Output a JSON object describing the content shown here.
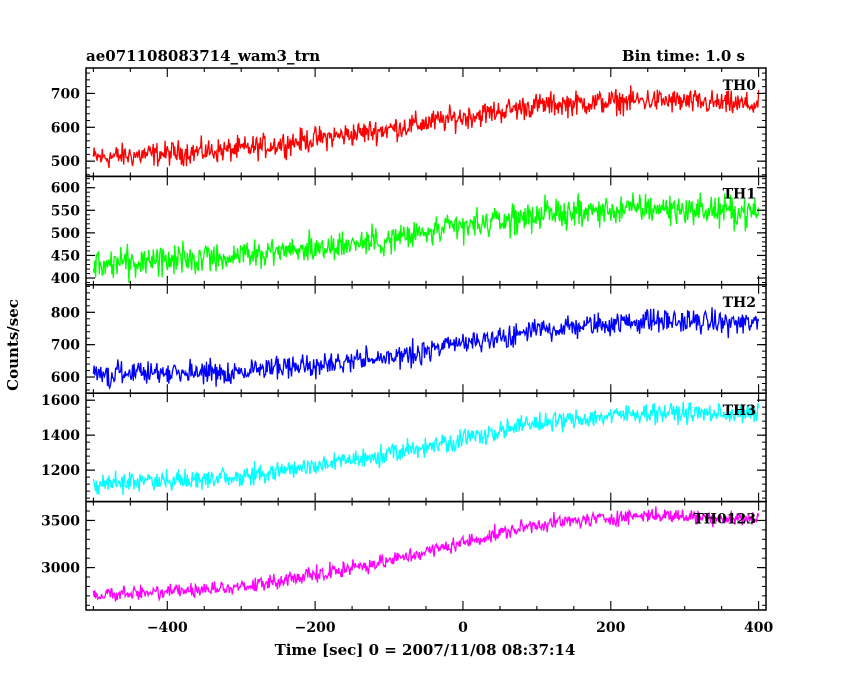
{
  "chart_data": {
    "type": "line",
    "title": "ae071108083714_wam3_trn",
    "bin_time": "Bin time: 1.0 s",
    "xlabel": "Time [sec] 0 = 2007/11/08 08:37:14",
    "ylabel": "Counts/sec",
    "xlim": [
      -510,
      410
    ],
    "x_ticks": [
      -400,
      -200,
      0,
      200,
      400
    ],
    "x_tick_labels": [
      "−400",
      "−200",
      "0",
      "200",
      "400"
    ],
    "x_start": -500,
    "x_end": 400,
    "x_step": 1,
    "grid": false,
    "panels": [
      {
        "name": "TH0",
        "color": "#ff0000",
        "ylim": [
          455,
          775
        ],
        "y_ticks": [
          500,
          600,
          700
        ],
        "y_tick_labels": [
          "500",
          "600",
          "700"
        ],
        "trend": [
          [
            -500,
            510
          ],
          [
            -300,
            535
          ],
          [
            -100,
            595
          ],
          [
            100,
            665
          ],
          [
            250,
            680
          ],
          [
            400,
            665
          ]
        ],
        "noise_amplitude": 38
      },
      {
        "name": "TH1",
        "color": "#00ff00",
        "ylim": [
          385,
          625
        ],
        "y_ticks": [
          400,
          450,
          500,
          550,
          600
        ],
        "y_tick_labels": [
          "400",
          "450",
          "500",
          "550",
          "600"
        ],
        "trend": [
          [
            -500,
            430
          ],
          [
            -300,
            450
          ],
          [
            -100,
            485
          ],
          [
            100,
            540
          ],
          [
            250,
            555
          ],
          [
            400,
            545
          ]
        ],
        "noise_amplitude": 35
      },
      {
        "name": "TH2",
        "color": "#0000ff",
        "ylim": [
          550,
          885
        ],
        "y_ticks": [
          600,
          700,
          800
        ],
        "y_tick_labels": [
          "600",
          "700",
          "800"
        ],
        "trend": [
          [
            -500,
            610
          ],
          [
            -300,
            615
          ],
          [
            -100,
            660
          ],
          [
            100,
            745
          ],
          [
            250,
            775
          ],
          [
            400,
            765
          ]
        ],
        "noise_amplitude": 38
      },
      {
        "name": "TH3",
        "color": "#00ffff",
        "ylim": [
          1020,
          1640
        ],
        "y_ticks": [
          1200,
          1400,
          1600
        ],
        "y_tick_labels": [
          "1200",
          "1400",
          "1600"
        ],
        "trend": [
          [
            -500,
            1120
          ],
          [
            -300,
            1160
          ],
          [
            -100,
            1290
          ],
          [
            100,
            1470
          ],
          [
            250,
            1530
          ],
          [
            400,
            1520
          ]
        ],
        "noise_amplitude": 60
      },
      {
        "name": "TH0123",
        "color": "#ff00ff",
        "ylim": [
          2550,
          3700
        ],
        "y_ticks": [
          3000,
          3500
        ],
        "y_tick_labels": [
          "3000",
          "3500"
        ],
        "trend": [
          [
            -500,
            2700
          ],
          [
            -300,
            2790
          ],
          [
            -100,
            3070
          ],
          [
            100,
            3460
          ],
          [
            250,
            3560
          ],
          [
            400,
            3510
          ]
        ],
        "noise_amplitude": 85
      }
    ]
  }
}
